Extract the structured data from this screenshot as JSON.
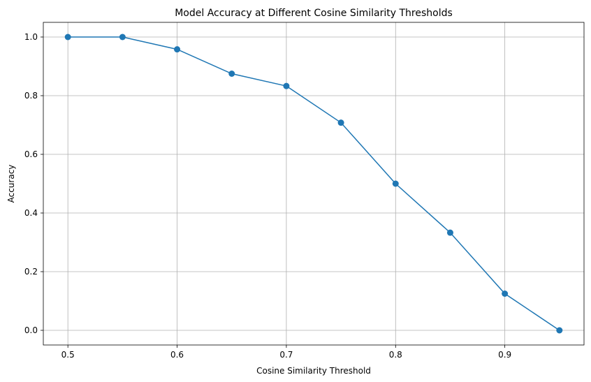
{
  "chart_data": {
    "type": "line",
    "title": "Model Accuracy at Different Cosine Similarity Thresholds",
    "xlabel": "Cosine Similarity Threshold",
    "ylabel": "Accuracy",
    "xlim": [
      0.4775,
      0.9725
    ],
    "ylim": [
      -0.05,
      1.05
    ],
    "xticks": [
      0.5,
      0.6,
      0.7,
      0.8,
      0.9
    ],
    "xtick_labels": [
      "0.5",
      "0.6",
      "0.7",
      "0.8",
      "0.9"
    ],
    "yticks": [
      0.0,
      0.2,
      0.4,
      0.6,
      0.8,
      1.0
    ],
    "ytick_labels": [
      "0.0",
      "0.2",
      "0.4",
      "0.6",
      "0.8",
      "1.0"
    ],
    "grid": true,
    "color": "#1f77b4",
    "marker": "circle",
    "series": [
      {
        "x": [
          0.5,
          0.55,
          0.6,
          0.65,
          0.7,
          0.75,
          0.8,
          0.85,
          0.9,
          0.95
        ],
        "values": [
          1.0,
          1.0,
          0.958,
          0.875,
          0.833,
          0.708,
          0.5,
          0.333,
          0.125,
          0.0
        ]
      }
    ]
  }
}
